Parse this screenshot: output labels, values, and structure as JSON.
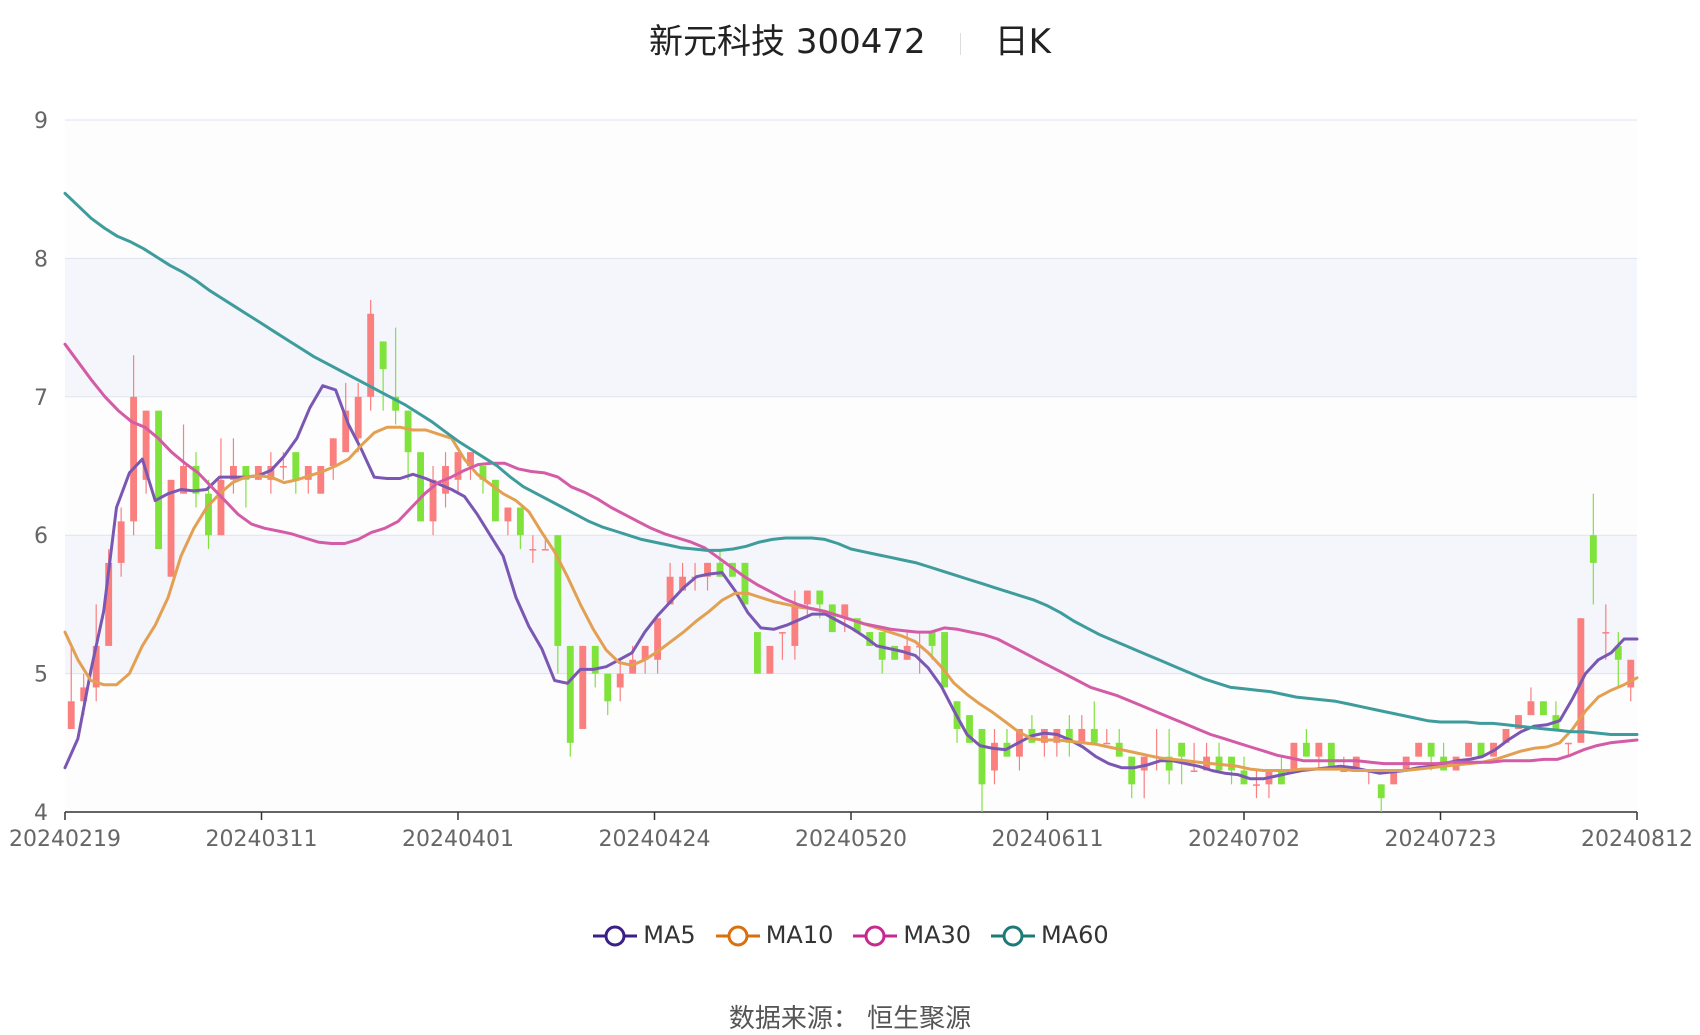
{
  "title": {
    "name": "新元科技 300472",
    "period": "日K"
  },
  "source": "数据来源： 恒生聚源",
  "chart_data": {
    "type": "candlestick",
    "ylim": [
      4,
      9
    ],
    "yticks": [
      4,
      5,
      6,
      7,
      8,
      9
    ],
    "xticks": [
      "20240219",
      "20240311",
      "20240401",
      "20240424",
      "20240520",
      "20240611",
      "20240702",
      "20240723",
      "20240812"
    ],
    "colors": {
      "up": "#fa7f7f",
      "down": "#7fe33c",
      "MA5": "#7a57b3",
      "MA10": "#e3a052",
      "MA30": "#d45ca6",
      "MA60": "#3f9c9c",
      "legend_MA5": "#3b1f86",
      "legend_MA10": "#d9700f",
      "legend_MA30": "#c42a8f",
      "legend_MA60": "#1e7a77"
    },
    "candles": [
      [
        4.6,
        4.8,
        5.2,
        4.6
      ],
      [
        4.8,
        4.9,
        5.0,
        4.7
      ],
      [
        4.9,
        5.2,
        5.5,
        4.8
      ],
      [
        5.2,
        5.8,
        5.9,
        5.2
      ],
      [
        5.8,
        6.1,
        6.2,
        5.7
      ],
      [
        6.1,
        7.0,
        7.3,
        6.0
      ],
      [
        6.4,
        6.9,
        6.9,
        6.3
      ],
      [
        6.9,
        5.9,
        6.9,
        5.9
      ],
      [
        5.7,
        6.4,
        6.4,
        5.7
      ],
      [
        6.3,
        6.5,
        6.8,
        6.3
      ],
      [
        6.5,
        6.3,
        6.6,
        6.2
      ],
      [
        6.3,
        6.0,
        6.4,
        5.9
      ],
      [
        6.0,
        6.4,
        6.7,
        6.0
      ],
      [
        6.4,
        6.5,
        6.7,
        6.3
      ],
      [
        6.5,
        6.4,
        6.5,
        6.2
      ],
      [
        6.4,
        6.5,
        6.5,
        6.4
      ],
      [
        6.4,
        6.5,
        6.6,
        6.3
      ],
      [
        6.5,
        6.5,
        6.6,
        6.4
      ],
      [
        6.6,
        6.4,
        6.6,
        6.3
      ],
      [
        6.4,
        6.5,
        6.5,
        6.3
      ],
      [
        6.3,
        6.5,
        6.5,
        6.3
      ],
      [
        6.5,
        6.7,
        6.7,
        6.4
      ],
      [
        6.6,
        6.9,
        7.1,
        6.6
      ],
      [
        6.7,
        7.0,
        7.1,
        6.6
      ],
      [
        7.0,
        7.6,
        7.7,
        6.9
      ],
      [
        7.4,
        7.2,
        7.4,
        6.9
      ],
      [
        7.0,
        6.9,
        7.5,
        6.8
      ],
      [
        6.9,
        6.6,
        6.9,
        6.4
      ],
      [
        6.6,
        6.1,
        6.6,
        6.1
      ],
      [
        6.1,
        6.4,
        6.5,
        6.0
      ],
      [
        6.3,
        6.5,
        6.6,
        6.2
      ],
      [
        6.4,
        6.6,
        6.6,
        6.3
      ],
      [
        6.5,
        6.6,
        6.6,
        6.4
      ],
      [
        6.5,
        6.4,
        6.5,
        6.3
      ],
      [
        6.4,
        6.1,
        6.4,
        6.1
      ],
      [
        6.1,
        6.2,
        6.2,
        6.0
      ],
      [
        6.2,
        6.0,
        6.2,
        5.9
      ],
      [
        5.9,
        5.9,
        6.0,
        5.8
      ],
      [
        5.9,
        5.9,
        6.0,
        5.9
      ],
      [
        6.0,
        5.2,
        6.0,
        5.0
      ],
      [
        5.2,
        4.5,
        5.2,
        4.4
      ],
      [
        4.6,
        5.2,
        5.2,
        4.6
      ],
      [
        5.2,
        5.0,
        5.2,
        4.9
      ],
      [
        5.0,
        4.8,
        5.0,
        4.7
      ],
      [
        4.9,
        5.0,
        5.1,
        4.8
      ],
      [
        5.0,
        5.1,
        5.2,
        5.0
      ],
      [
        5.1,
        5.2,
        5.2,
        5.0
      ],
      [
        5.1,
        5.4,
        5.4,
        5.0
      ],
      [
        5.5,
        5.7,
        5.8,
        5.5
      ],
      [
        5.6,
        5.7,
        5.8,
        5.6
      ],
      [
        5.7,
        5.7,
        5.8,
        5.6
      ],
      [
        5.7,
        5.8,
        5.8,
        5.6
      ],
      [
        5.8,
        5.7,
        5.9,
        5.7
      ],
      [
        5.8,
        5.7,
        5.8,
        5.7
      ],
      [
        5.8,
        5.5,
        5.8,
        5.5
      ],
      [
        5.3,
        5.0,
        5.3,
        5.0
      ],
      [
        5.0,
        5.2,
        5.2,
        5.0
      ],
      [
        5.3,
        5.3,
        5.3,
        5.1
      ],
      [
        5.2,
        5.5,
        5.6,
        5.1
      ],
      [
        5.5,
        5.6,
        5.6,
        5.4
      ],
      [
        5.6,
        5.5,
        5.6,
        5.4
      ],
      [
        5.5,
        5.3,
        5.5,
        5.3
      ],
      [
        5.4,
        5.5,
        5.5,
        5.3
      ],
      [
        5.4,
        5.3,
        5.4,
        5.3
      ],
      [
        5.3,
        5.2,
        5.3,
        5.2
      ],
      [
        5.3,
        5.1,
        5.3,
        5.0
      ],
      [
        5.2,
        5.1,
        5.2,
        5.1
      ],
      [
        5.1,
        5.2,
        5.3,
        5.1
      ],
      [
        5.2,
        5.2,
        5.3,
        5.0
      ],
      [
        5.3,
        5.2,
        5.3,
        5.1
      ],
      [
        5.3,
        4.9,
        5.3,
        4.9
      ],
      [
        4.8,
        4.6,
        4.8,
        4.5
      ],
      [
        4.7,
        4.5,
        4.7,
        4.5
      ],
      [
        4.6,
        4.2,
        4.6,
        4.0
      ],
      [
        4.3,
        4.5,
        4.6,
        4.2
      ],
      [
        4.5,
        4.4,
        4.6,
        4.4
      ],
      [
        4.4,
        4.6,
        4.6,
        4.3
      ],
      [
        4.6,
        4.5,
        4.7,
        4.5
      ],
      [
        4.5,
        4.6,
        4.6,
        4.4
      ],
      [
        4.5,
        4.6,
        4.6,
        4.4
      ],
      [
        4.6,
        4.5,
        4.7,
        4.4
      ],
      [
        4.5,
        4.6,
        4.7,
        4.5
      ],
      [
        4.6,
        4.5,
        4.8,
        4.5
      ],
      [
        4.5,
        4.5,
        4.6,
        4.5
      ],
      [
        4.5,
        4.4,
        4.6,
        4.4
      ],
      [
        4.4,
        4.2,
        4.4,
        4.1
      ],
      [
        4.3,
        4.4,
        4.4,
        4.1
      ],
      [
        4.4,
        4.4,
        4.6,
        4.3
      ],
      [
        4.4,
        4.3,
        4.6,
        4.2
      ],
      [
        4.5,
        4.4,
        4.5,
        4.2
      ],
      [
        4.3,
        4.3,
        4.5,
        4.3
      ],
      [
        4.3,
        4.4,
        4.5,
        4.3
      ],
      [
        4.4,
        4.3,
        4.5,
        4.3
      ],
      [
        4.4,
        4.3,
        4.4,
        4.2
      ],
      [
        4.3,
        4.2,
        4.4,
        4.2
      ],
      [
        4.2,
        4.2,
        4.3,
        4.1
      ],
      [
        4.2,
        4.3,
        4.3,
        4.1
      ],
      [
        4.3,
        4.2,
        4.4,
        4.2
      ],
      [
        4.3,
        4.5,
        4.5,
        4.3
      ],
      [
        4.5,
        4.4,
        4.6,
        4.4
      ],
      [
        4.4,
        4.5,
        4.5,
        4.3
      ],
      [
        4.5,
        4.3,
        4.5,
        4.3
      ],
      [
        4.3,
        4.3,
        4.4,
        4.3
      ],
      [
        4.3,
        4.4,
        4.4,
        4.3
      ],
      [
        4.3,
        4.3,
        4.3,
        4.2
      ],
      [
        4.2,
        4.1,
        4.2,
        4.0
      ],
      [
        4.2,
        4.3,
        4.3,
        4.2
      ],
      [
        4.3,
        4.4,
        4.4,
        4.3
      ],
      [
        4.4,
        4.5,
        4.5,
        4.4
      ],
      [
        4.5,
        4.4,
        4.5,
        4.3
      ],
      [
        4.4,
        4.3,
        4.5,
        4.3
      ],
      [
        4.3,
        4.4,
        4.4,
        4.3
      ],
      [
        4.4,
        4.5,
        4.5,
        4.4
      ],
      [
        4.5,
        4.4,
        4.5,
        4.4
      ],
      [
        4.4,
        4.5,
        4.5,
        4.4
      ],
      [
        4.5,
        4.6,
        4.6,
        4.5
      ],
      [
        4.6,
        4.7,
        4.7,
        4.6
      ],
      [
        4.7,
        4.8,
        4.9,
        4.7
      ],
      [
        4.8,
        4.7,
        4.8,
        4.7
      ],
      [
        4.7,
        4.6,
        4.8,
        4.6
      ],
      [
        4.5,
        4.5,
        4.5,
        4.4
      ],
      [
        4.5,
        5.4,
        5.4,
        4.5
      ],
      [
        6.0,
        5.8,
        6.3,
        5.5
      ],
      [
        5.3,
        5.3,
        5.5,
        5.1
      ],
      [
        5.2,
        5.1,
        5.3,
        4.9
      ],
      [
        4.9,
        5.1,
        5.1,
        4.8
      ]
    ],
    "series": [
      {
        "name": "MA5",
        "values": [
          4.32,
          4.53,
          5.02,
          5.45,
          6.2,
          6.45,
          6.55,
          6.25,
          6.3,
          6.33,
          6.32,
          6.33,
          6.42,
          6.42,
          6.42,
          6.43,
          6.47,
          6.57,
          6.7,
          6.92,
          7.08,
          7.05,
          6.8,
          6.62,
          6.42,
          6.41,
          6.41,
          6.44,
          6.41,
          6.37,
          6.33,
          6.28,
          6.15,
          6.0,
          5.85,
          5.55,
          5.34,
          5.18,
          4.95,
          4.93,
          5.03,
          5.03,
          5.05,
          5.1,
          5.15,
          5.3,
          5.42,
          5.52,
          5.62,
          5.7,
          5.72,
          5.73,
          5.6,
          5.44,
          5.33,
          5.32,
          5.35,
          5.39,
          5.43,
          5.43,
          5.38,
          5.33,
          5.27,
          5.2,
          5.18,
          5.16,
          5.13,
          5.04,
          4.91,
          4.73,
          4.56,
          4.48,
          4.46,
          4.45,
          4.5,
          4.55,
          4.57,
          4.56,
          4.52,
          4.47,
          4.4,
          4.35,
          4.32,
          4.32,
          4.34,
          4.37,
          4.37,
          4.35,
          4.33,
          4.3,
          4.28,
          4.27,
          4.24,
          4.24,
          4.26,
          4.28,
          4.3,
          4.31,
          4.32,
          4.33,
          4.32,
          4.3,
          4.28,
          4.29,
          4.3,
          4.32,
          4.33,
          4.35,
          4.37,
          4.38,
          4.4,
          4.45,
          4.52,
          4.58,
          4.62,
          4.63,
          4.66,
          4.82,
          5.0,
          5.1,
          5.15,
          5.25,
          5.25
        ]
      },
      {
        "name": "MA10",
        "values": [
          5.3,
          5.1,
          4.95,
          4.92,
          4.92,
          5.0,
          5.2,
          5.35,
          5.55,
          5.85,
          6.05,
          6.2,
          6.3,
          6.38,
          6.42,
          6.43,
          6.42,
          6.38,
          6.4,
          6.43,
          6.46,
          6.5,
          6.55,
          6.65,
          6.74,
          6.78,
          6.78,
          6.76,
          6.76,
          6.73,
          6.7,
          6.55,
          6.44,
          6.37,
          6.3,
          6.25,
          6.17,
          6.02,
          5.88,
          5.7,
          5.5,
          5.32,
          5.17,
          5.08,
          5.06,
          5.1,
          5.16,
          5.23,
          5.3,
          5.38,
          5.45,
          5.53,
          5.58,
          5.58,
          5.55,
          5.52,
          5.5,
          5.48,
          5.47,
          5.45,
          5.42,
          5.39,
          5.36,
          5.33,
          5.3,
          5.27,
          5.23,
          5.15,
          5.05,
          4.93,
          4.85,
          4.78,
          4.72,
          4.65,
          4.58,
          4.53,
          4.52,
          4.52,
          4.51,
          4.5,
          4.49,
          4.47,
          4.45,
          4.43,
          4.41,
          4.39,
          4.38,
          4.37,
          4.36,
          4.35,
          4.34,
          4.33,
          4.31,
          4.3,
          4.3,
          4.3,
          4.31,
          4.31,
          4.31,
          4.31,
          4.3,
          4.3,
          4.3,
          4.3,
          4.3,
          4.31,
          4.32,
          4.33,
          4.34,
          4.35,
          4.36,
          4.38,
          4.41,
          4.44,
          4.46,
          4.47,
          4.5,
          4.6,
          4.73,
          4.83,
          4.88,
          4.92,
          4.97
        ]
      },
      {
        "name": "MA30",
        "values": [
          7.38,
          7.25,
          7.12,
          7.0,
          6.9,
          6.82,
          6.78,
          6.7,
          6.6,
          6.52,
          6.45,
          6.35,
          6.25,
          6.15,
          6.08,
          6.05,
          6.03,
          6.01,
          5.98,
          5.95,
          5.94,
          5.94,
          5.97,
          6.02,
          6.05,
          6.1,
          6.2,
          6.3,
          6.38,
          6.42,
          6.47,
          6.51,
          6.52,
          6.52,
          6.48,
          6.46,
          6.45,
          6.42,
          6.35,
          6.31,
          6.26,
          6.2,
          6.15,
          6.1,
          6.05,
          6.01,
          5.98,
          5.95,
          5.91,
          5.84,
          5.77,
          5.7,
          5.64,
          5.59,
          5.54,
          5.5,
          5.47,
          5.45,
          5.42,
          5.39,
          5.36,
          5.34,
          5.32,
          5.31,
          5.3,
          5.3,
          5.33,
          5.32,
          5.3,
          5.28,
          5.25,
          5.2,
          5.15,
          5.1,
          5.05,
          5.0,
          4.95,
          4.9,
          4.87,
          4.84,
          4.8,
          4.76,
          4.72,
          4.68,
          4.64,
          4.6,
          4.56,
          4.53,
          4.5,
          4.47,
          4.44,
          4.41,
          4.39,
          4.37,
          4.37,
          4.37,
          4.37,
          4.37,
          4.36,
          4.35,
          4.35,
          4.35,
          4.35,
          4.35,
          4.36,
          4.36,
          4.36,
          4.36,
          4.37,
          4.37,
          4.37,
          4.38,
          4.38,
          4.41,
          4.45,
          4.48,
          4.5,
          4.51,
          4.52
        ]
      },
      {
        "name": "MA60",
        "values": [
          8.47,
          8.38,
          8.29,
          8.22,
          8.16,
          8.12,
          8.07,
          8.01,
          7.95,
          7.9,
          7.84,
          7.77,
          7.71,
          7.65,
          7.59,
          7.53,
          7.47,
          7.41,
          7.35,
          7.29,
          7.24,
          7.19,
          7.14,
          7.09,
          7.04,
          6.99,
          6.94,
          6.88,
          6.82,
          6.75,
          6.68,
          6.62,
          6.56,
          6.5,
          6.42,
          6.35,
          6.3,
          6.25,
          6.2,
          6.15,
          6.1,
          6.06,
          6.03,
          6.0,
          5.97,
          5.95,
          5.93,
          5.91,
          5.9,
          5.89,
          5.89,
          5.9,
          5.92,
          5.95,
          5.97,
          5.98,
          5.98,
          5.98,
          5.97,
          5.94,
          5.9,
          5.88,
          5.86,
          5.84,
          5.82,
          5.8,
          5.77,
          5.74,
          5.71,
          5.68,
          5.65,
          5.62,
          5.59,
          5.56,
          5.53,
          5.49,
          5.44,
          5.38,
          5.33,
          5.28,
          5.24,
          5.2,
          5.16,
          5.12,
          5.08,
          5.04,
          5.0,
          4.96,
          4.93,
          4.9,
          4.89,
          4.88,
          4.87,
          4.85,
          4.83,
          4.82,
          4.81,
          4.8,
          4.78,
          4.76,
          4.74,
          4.72,
          4.7,
          4.68,
          4.66,
          4.65,
          4.65,
          4.65,
          4.64,
          4.64,
          4.63,
          4.62,
          4.61,
          4.6,
          4.59,
          4.58,
          4.58,
          4.57,
          4.56,
          4.56,
          4.56
        ]
      }
    ],
    "legend": [
      "MA5",
      "MA10",
      "MA30",
      "MA60"
    ]
  }
}
